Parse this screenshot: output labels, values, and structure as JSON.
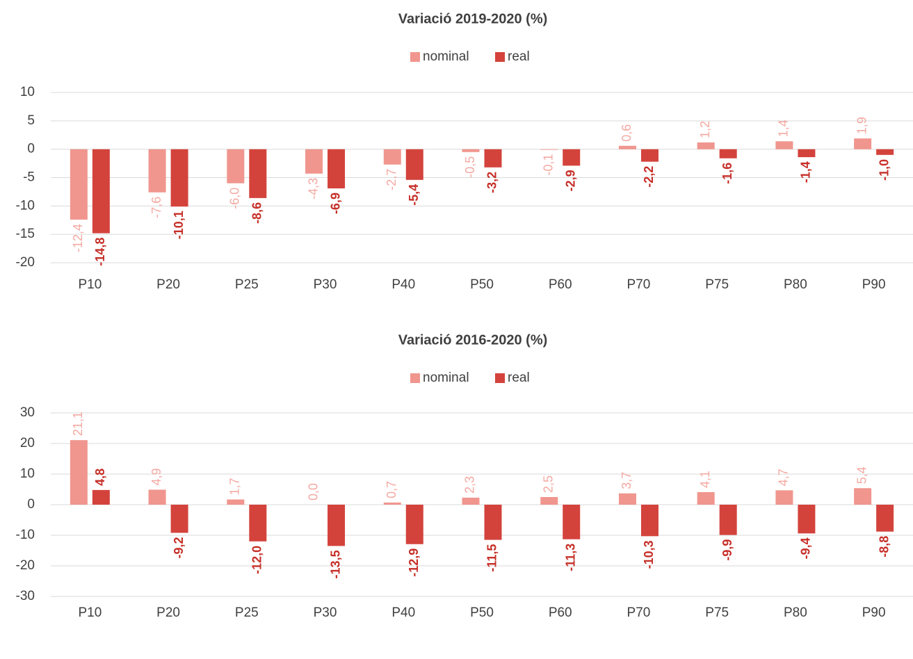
{
  "chart_data": [
    {
      "type": "bar",
      "title": "Variació 2019-2020 (%)",
      "categories": [
        "P10",
        "P20",
        "P25",
        "P30",
        "P40",
        "P50",
        "P60",
        "P70",
        "P75",
        "P80",
        "P90"
      ],
      "series": [
        {
          "name": "nominal",
          "color": "#f0968e",
          "label_color": "#f4a8a1",
          "values": [
            -12.4,
            -7.6,
            -6.0,
            -4.3,
            -2.7,
            -0.5,
            -0.1,
            0.6,
            1.2,
            1.4,
            1.9
          ],
          "value_labels": [
            "-12,4",
            "-7,6",
            "-6,0",
            "-4,3",
            "-2,7",
            "-0,5",
            "-0,1",
            "0,6",
            "1,2",
            "1,4",
            "1,9"
          ]
        },
        {
          "name": "real",
          "color": "#d3433c",
          "label_color": "#c62f28",
          "values": [
            -14.8,
            -10.1,
            -8.6,
            -6.9,
            -5.4,
            -3.2,
            -2.9,
            -2.2,
            -1.6,
            -1.4,
            -1.0
          ],
          "value_labels": [
            "-14,8",
            "-10,1",
            "-8,6",
            "-6,9",
            "-5,4",
            "-3,2",
            "-2,9",
            "-2,2",
            "-1,6",
            "-1,4",
            "-1,0"
          ]
        }
      ],
      "ylim": [
        -20,
        10
      ],
      "yticks": [
        -20,
        -15,
        -10,
        -5,
        0,
        5,
        10
      ],
      "grid": true,
      "legend": "top"
    },
    {
      "type": "bar",
      "title": "Variació 2016-2020 (%)",
      "categories": [
        "P10",
        "P20",
        "P25",
        "P30",
        "P40",
        "P50",
        "P60",
        "P70",
        "P75",
        "P80",
        "P90"
      ],
      "series": [
        {
          "name": "nominal",
          "color": "#f0968e",
          "label_color": "#f4a8a1",
          "values": [
            21.1,
            4.9,
            1.7,
            0.0,
            0.7,
            2.3,
            2.5,
            3.7,
            4.1,
            4.7,
            5.4
          ],
          "value_labels": [
            "21,1",
            "4,9",
            "1,7",
            "0,0",
            "0,7",
            "2,3",
            "2,5",
            "3,7",
            "4,1",
            "4,7",
            "5,4"
          ]
        },
        {
          "name": "real",
          "color": "#d3433c",
          "label_color": "#c62f28",
          "values": [
            4.8,
            -9.2,
            -12.0,
            -13.5,
            -12.9,
            -11.5,
            -11.3,
            -10.3,
            -9.9,
            -9.4,
            -8.8
          ],
          "value_labels": [
            "4,8",
            "-9,2",
            "-12,0",
            "-13,5",
            "-12,9",
            "-11,5",
            "-11,3",
            "-10,3",
            "-9,9",
            "-9,4",
            "-8,8"
          ]
        }
      ],
      "ylim": [
        -30,
        30
      ],
      "yticks": [
        -30,
        -20,
        -10,
        0,
        10,
        20,
        30
      ],
      "grid": true,
      "legend": "top"
    }
  ]
}
